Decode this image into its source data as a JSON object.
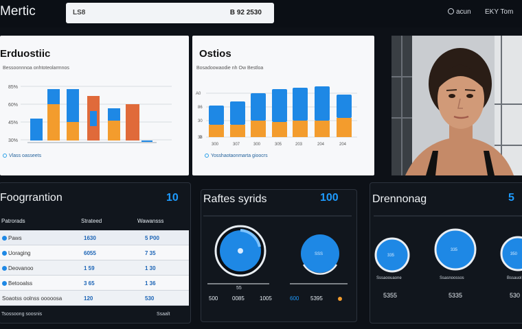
{
  "header": {
    "title": "Mertic",
    "search_left": "LS8",
    "search_right": "B 92 2530",
    "nav_account": "acun",
    "nav_right": "EKY Tom"
  },
  "panel1": {
    "title": "Erduostiic",
    "subtitle": "Bessoonnnoa onhtoteolarmnos",
    "yticks": [
      "85%",
      "60%",
      "45%",
      "30%"
    ],
    "footer": "Vlass oasseets",
    "colors": {
      "blue": "#1e88e5",
      "orange": "#f39c2d",
      "rust": "#e06a3a"
    }
  },
  "panel2": {
    "title": "Ostios",
    "subtitle": "Bosadoowaodie nh Ow Bestloa",
    "yticks": [
      "A0",
      "86",
      "30",
      "38",
      "0"
    ],
    "xticks": [
      "300",
      "307",
      "300",
      "305",
      "203",
      "204",
      "204"
    ],
    "footer": "Yosshaotaonmarta gioocrs"
  },
  "photo": {
    "alt": "portrait-photo"
  },
  "panel3": {
    "title": "Foogrrantion",
    "value": "10",
    "col1": "Patrorads",
    "col2": "Strateed",
    "col3": "Wawansss",
    "rows": [
      {
        "label": "Paws",
        "v1": "1630",
        "v2": "5 P00"
      },
      {
        "label": "Uoraging",
        "v1": "6055",
        "v2": "7 35"
      },
      {
        "label": "Deovanoo",
        "v1": "1 59",
        "v2": "1 30"
      },
      {
        "label": "Betooalss",
        "v1": "3 65",
        "v2": "1 36"
      },
      {
        "label": "Soaotss oolnss ooooosa",
        "v1": "120",
        "v2": "530"
      }
    ],
    "footer_left": "Tsossoong soosnis",
    "footer_right": "Ssaalt"
  },
  "panel4": {
    "title": "Raftes syrids",
    "value": "100",
    "label_left": "55",
    "bottom": [
      "500",
      "0085",
      "1005",
      "600",
      "5395"
    ]
  },
  "panel5": {
    "title": "Drennonag",
    "value": "5",
    "donuts": [
      {
        "inner": "335",
        "caption": "Sssaoouaone",
        "value": "5355"
      },
      {
        "inner": "335",
        "caption": "Ssasnoossos",
        "value": "5335"
      },
      {
        "inner": "350",
        "caption": "Bssauol",
        "value": "530"
      }
    ]
  }
}
